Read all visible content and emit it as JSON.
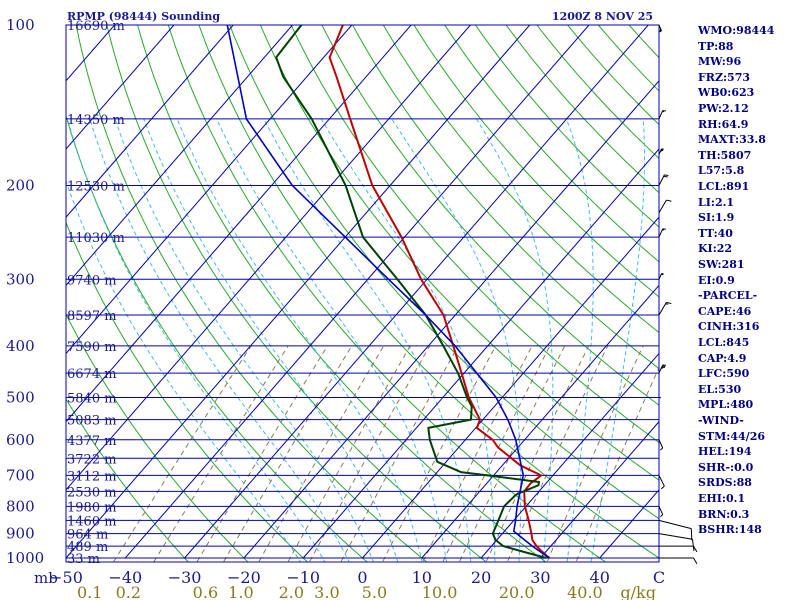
{
  "header": {
    "station": "RPMP (98444) Sounding",
    "time": "1200Z  8 NOV 25"
  },
  "indices": [
    "WMO:98444",
    "TP:88",
    "MW:96",
    "FRZ:573",
    "WB0:623",
    "PW:2.12",
    "RH:64.9",
    "MAXT:33.8",
    "TH:5807",
    "L57:5.8",
    "LCL:891",
    "LI:2.1",
    "SI:1.9",
    "TT:40",
    "KI:22",
    "SW:281",
    "EI:0.9",
    "-PARCEL-",
    "CAPE:46",
    "CINH:316",
    "LCL:845",
    "CAP:4.9",
    "LFC:590",
    "EL:530",
    "MPL:480",
    "-WIND-",
    "STM:44/26",
    "HEL:194",
    "SHR-:0.0",
    "SRDS:88",
    "EHI:0.1",
    "BRN:0.3",
    "BSHR:148"
  ],
  "colors": {
    "isobar": "#0000b0",
    "isotherm": "#0000b0",
    "dry_adiabat": "#2aa82a",
    "moist_adiabat": "#44b8f0",
    "mixing_ratio": "#8a7a50",
    "temperature": "#c00000",
    "dewpoint": "#004000",
    "parcel": "#0000c0"
  },
  "chart_data": {
    "type": "skew-t",
    "title": "RPMP (98444) Sounding",
    "pressure_axis_label": "mb",
    "pressure_range": [
      1000,
      100
    ],
    "temperature_range": [
      -50,
      50
    ],
    "pressure_ticks": [
      {
        "p": 100,
        "label": "100"
      },
      {
        "p": 200,
        "label": "200"
      },
      {
        "p": 300,
        "label": "300"
      },
      {
        "p": 400,
        "label": "400"
      },
      {
        "p": 500,
        "label": "500"
      },
      {
        "p": 600,
        "label": "600"
      },
      {
        "p": 700,
        "label": "700"
      },
      {
        "p": 800,
        "label": "800"
      },
      {
        "p": 900,
        "label": "900"
      },
      {
        "p": 1000,
        "label": "1000"
      }
    ],
    "height_labels": [
      {
        "p": 100,
        "label": "16690 m"
      },
      {
        "p": 150,
        "label": "14350 m"
      },
      {
        "p": 200,
        "label": "12530 m"
      },
      {
        "p": 250,
        "label": "11030 m"
      },
      {
        "p": 300,
        "label": "9740 m"
      },
      {
        "p": 350,
        "label": "8597 m"
      },
      {
        "p": 400,
        "label": "7590 m"
      },
      {
        "p": 450,
        "label": "6674 m"
      },
      {
        "p": 500,
        "label": "5840 m"
      },
      {
        "p": 550,
        "label": "5083 m"
      },
      {
        "p": 600,
        "label": "4377 m"
      },
      {
        "p": 650,
        "label": "3722 m"
      },
      {
        "p": 700,
        "label": "3112 m"
      },
      {
        "p": 750,
        "label": "2530 m"
      },
      {
        "p": 800,
        "label": "1980 m"
      },
      {
        "p": 850,
        "label": "1460 m"
      },
      {
        "p": 900,
        "label": "964 m"
      },
      {
        "p": 950,
        "label": "489 m"
      },
      {
        "p": 1000,
        "label": "33 m"
      }
    ],
    "temperature_ticks": [
      {
        "t": -50,
        "label": "−50"
      },
      {
        "t": -40,
        "label": "−40"
      },
      {
        "t": -30,
        "label": "−30"
      },
      {
        "t": -20,
        "label": "−20"
      },
      {
        "t": -10,
        "label": "−10"
      },
      {
        "t": 0,
        "label": "0"
      },
      {
        "t": 10,
        "label": "10"
      },
      {
        "t": 20,
        "label": "20"
      },
      {
        "t": 30,
        "label": "30"
      },
      {
        "t": 40,
        "label": "40"
      },
      {
        "t": 50,
        "label": "C"
      }
    ],
    "mixing_ratio_ticks": [
      {
        "t": -46,
        "label": "0.1"
      },
      {
        "t": -39.5,
        "label": "0.2"
      },
      {
        "t": -26.5,
        "label": "0.6"
      },
      {
        "t": -20.5,
        "label": "1.0"
      },
      {
        "t": -12,
        "label": "2.0"
      },
      {
        "t": -6,
        "label": "3.0"
      },
      {
        "t": 2,
        "label": "5.0"
      },
      {
        "t": 13,
        "label": "10.0"
      },
      {
        "t": 26,
        "label": "20.0"
      },
      {
        "t": 37.5,
        "label": "40.0"
      },
      {
        "t": 46.5,
        "label": "g/kg"
      }
    ],
    "mixing_ratio_lines": [
      0.1,
      0.2,
      0.4,
      0.6,
      1,
      1.5,
      2,
      3,
      5,
      8,
      10,
      12,
      16,
      20,
      30,
      40
    ],
    "series": [
      {
        "name": "temperature",
        "points": [
          {
            "p": 1000,
            "t": 31.5
          },
          {
            "p": 975,
            "t": 29.5
          },
          {
            "p": 950,
            "t": 27.6
          },
          {
            "p": 925,
            "t": 26.0
          },
          {
            "p": 900,
            "t": 24.9
          },
          {
            "p": 850,
            "t": 22.5
          },
          {
            "p": 800,
            "t": 19.8
          },
          {
            "p": 750,
            "t": 17.5
          },
          {
            "p": 725,
            "t": 17.4
          },
          {
            "p": 700,
            "t": 18.0
          },
          {
            "p": 670,
            "t": 13.0
          },
          {
            "p": 620,
            "t": 6.6
          },
          {
            "p": 600,
            "t": 4.6
          },
          {
            "p": 570,
            "t": 0.2
          },
          {
            "p": 550,
            "t": -0.5
          },
          {
            "p": 500,
            "t": -5.6
          },
          {
            "p": 450,
            "t": -10.4
          },
          {
            "p": 400,
            "t": -15.8
          },
          {
            "p": 350,
            "t": -22.0
          },
          {
            "p": 300,
            "t": -31.0
          },
          {
            "p": 250,
            "t": -40.5
          },
          {
            "p": 200,
            "t": -53.0
          },
          {
            "p": 150,
            "t": -66.5
          },
          {
            "p": 125,
            "t": -75.0
          },
          {
            "p": 115,
            "t": -79.0
          },
          {
            "p": 100,
            "t": -81.5
          }
        ]
      },
      {
        "name": "dewpoint",
        "points": [
          {
            "p": 1000,
            "t": 31.0
          },
          {
            "p": 975,
            "t": 26.5
          },
          {
            "p": 950,
            "t": 22.0
          },
          {
            "p": 925,
            "t": 19.8
          },
          {
            "p": 900,
            "t": 18.4
          },
          {
            "p": 850,
            "t": 17.4
          },
          {
            "p": 800,
            "t": 16.3
          },
          {
            "p": 760,
            "t": 16.6
          },
          {
            "p": 730,
            "t": 19.0
          },
          {
            "p": 720,
            "t": 18.6
          },
          {
            "p": 700,
            "t": 9.0
          },
          {
            "p": 690,
            "t": 4.0
          },
          {
            "p": 660,
            "t": -1.5
          },
          {
            "p": 600,
            "t": -6.0
          },
          {
            "p": 570,
            "t": -8.0
          },
          {
            "p": 550,
            "t": -2.0
          },
          {
            "p": 520,
            "t": -3.8
          },
          {
            "p": 500,
            "t": -5.9
          },
          {
            "p": 450,
            "t": -11.0
          },
          {
            "p": 400,
            "t": -17.5
          },
          {
            "p": 350,
            "t": -25.0
          },
          {
            "p": 300,
            "t": -35.0
          },
          {
            "p": 250,
            "t": -47.0
          },
          {
            "p": 200,
            "t": -57.5
          },
          {
            "p": 150,
            "t": -73.0
          },
          {
            "p": 125,
            "t": -84.0
          },
          {
            "p": 115,
            "t": -88.0
          },
          {
            "p": 100,
            "t": -88.5
          }
        ]
      },
      {
        "name": "parcel",
        "points": [
          {
            "p": 1000,
            "t": 31.5
          },
          {
            "p": 950,
            "t": 26.9
          },
          {
            "p": 891,
            "t": 21.6
          },
          {
            "p": 850,
            "t": 20.3
          },
          {
            "p": 800,
            "t": 18.5
          },
          {
            "p": 700,
            "t": 15.0
          },
          {
            "p": 600,
            "t": 8.5
          },
          {
            "p": 550,
            "t": 4.2
          },
          {
            "p": 500,
            "t": -1.0
          },
          {
            "p": 400,
            "t": -15.5
          },
          {
            "p": 350,
            "t": -25.0
          },
          {
            "p": 300,
            "t": -36.5
          },
          {
            "p": 250,
            "t": -50.0
          },
          {
            "p": 200,
            "t": -66.5
          },
          {
            "p": 150,
            "t": -84.0
          },
          {
            "p": 100,
            "t": -101.0
          }
        ]
      }
    ],
    "wind_barbs": [
      {
        "p": 100,
        "dir": 250,
        "kt": 25
      },
      {
        "p": 150,
        "dir": 300,
        "kt": 15
      },
      {
        "p": 175,
        "dir": 290,
        "kt": 35
      },
      {
        "p": 200,
        "dir": 310,
        "kt": 20
      },
      {
        "p": 225,
        "dir": 320,
        "kt": 10
      },
      {
        "p": 250,
        "dir": 300,
        "kt": 15
      },
      {
        "p": 300,
        "dir": 290,
        "kt": 20
      },
      {
        "p": 350,
        "dir": 320,
        "kt": 15
      },
      {
        "p": 450,
        "dir": 300,
        "kt": 35
      },
      {
        "p": 500,
        "dir": 270,
        "kt": 20
      },
      {
        "p": 600,
        "dir": 240,
        "kt": 10
      },
      {
        "p": 700,
        "dir": 230,
        "kt": 10
      },
      {
        "p": 800,
        "dir": 240,
        "kt": 10
      },
      {
        "p": 850,
        "dir": 120,
        "kt": 10
      },
      {
        "p": 900,
        "dir": 110,
        "kt": 10
      },
      {
        "p": 950,
        "dir": 90,
        "kt": 5
      },
      {
        "p": 1000,
        "dir": 90,
        "kt": 5
      }
    ]
  }
}
